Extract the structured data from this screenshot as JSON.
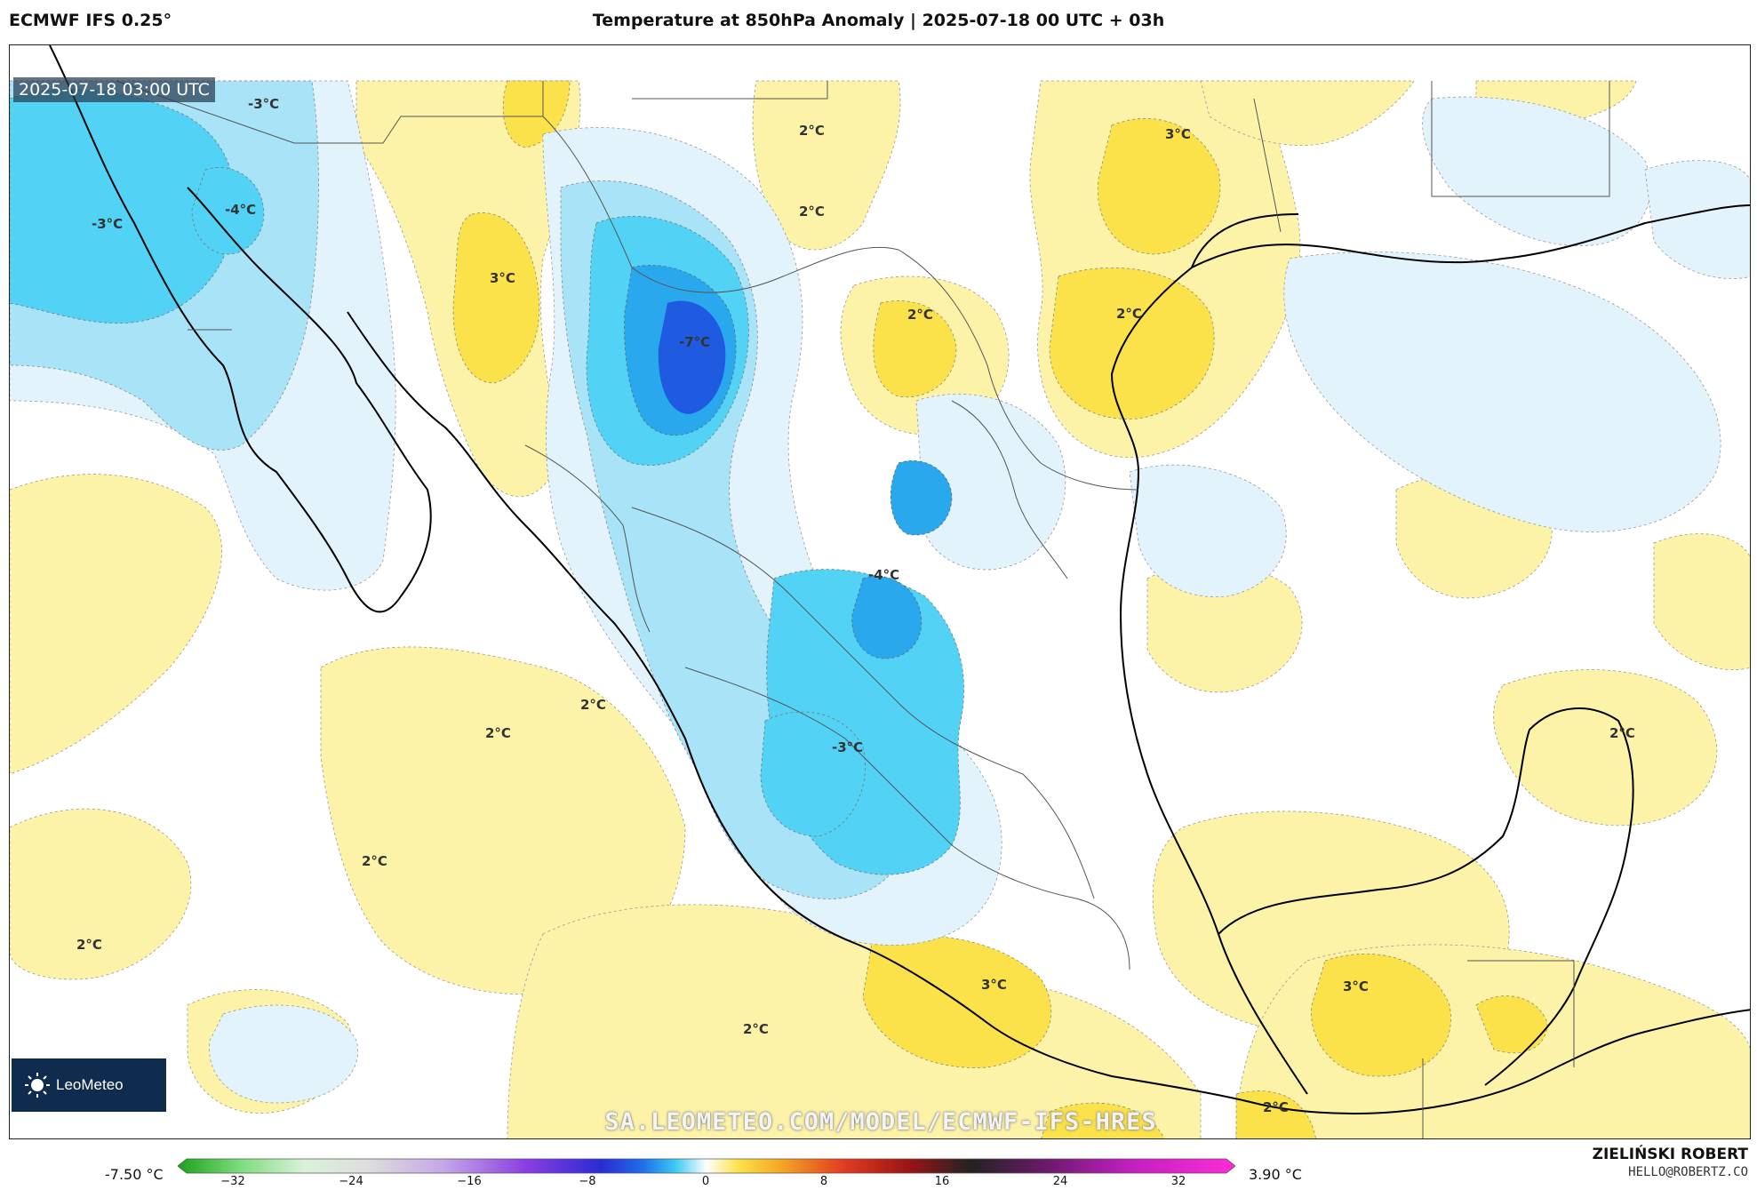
{
  "header": {
    "model": "ECMWF IFS 0.25°",
    "title": "Temperature at 850hPa Anomaly | 2025-07-18 00 UTC + 03h"
  },
  "map": {
    "valid_time": "2025-07-18 03:00 UTC",
    "logo_text": "LeoMeteo",
    "website": "SA.LEOMETEO.COM/MODEL/ECMWF-IFS-HRES",
    "contour_labels": [
      "-3°C",
      "-4°C",
      "-3°C",
      "3°C",
      "-7°C",
      "2°C",
      "2°C",
      "2°C",
      "3°C",
      "2°C",
      "-4°C",
      "-3°C",
      "2°C",
      "2°C",
      "2°C",
      "2°C",
      "3°C",
      "2°C",
      "3°C",
      "2°C",
      "2°C"
    ],
    "colors": {
      "land_line": "#000000",
      "pale_yellow": "#fdf3a8",
      "yellow": "#fbe24a",
      "pale_blue": "#e3f3fc",
      "light_blue": "#a8e3f7",
      "cyan": "#52d2f5",
      "blue": "#2aa8ee",
      "deep_blue": "#1f5be0"
    }
  },
  "colorbar": {
    "min_label": "-7.50 °C",
    "max_label": "3.90 °C",
    "ticks": [
      "−32",
      "−24",
      "−16",
      "−8",
      "0",
      "8",
      "16",
      "24",
      "32"
    ]
  },
  "footer": {
    "author": "ZIELIŃSKI ROBERT",
    "contact": "HELLO@ROBERTZ.CO"
  }
}
